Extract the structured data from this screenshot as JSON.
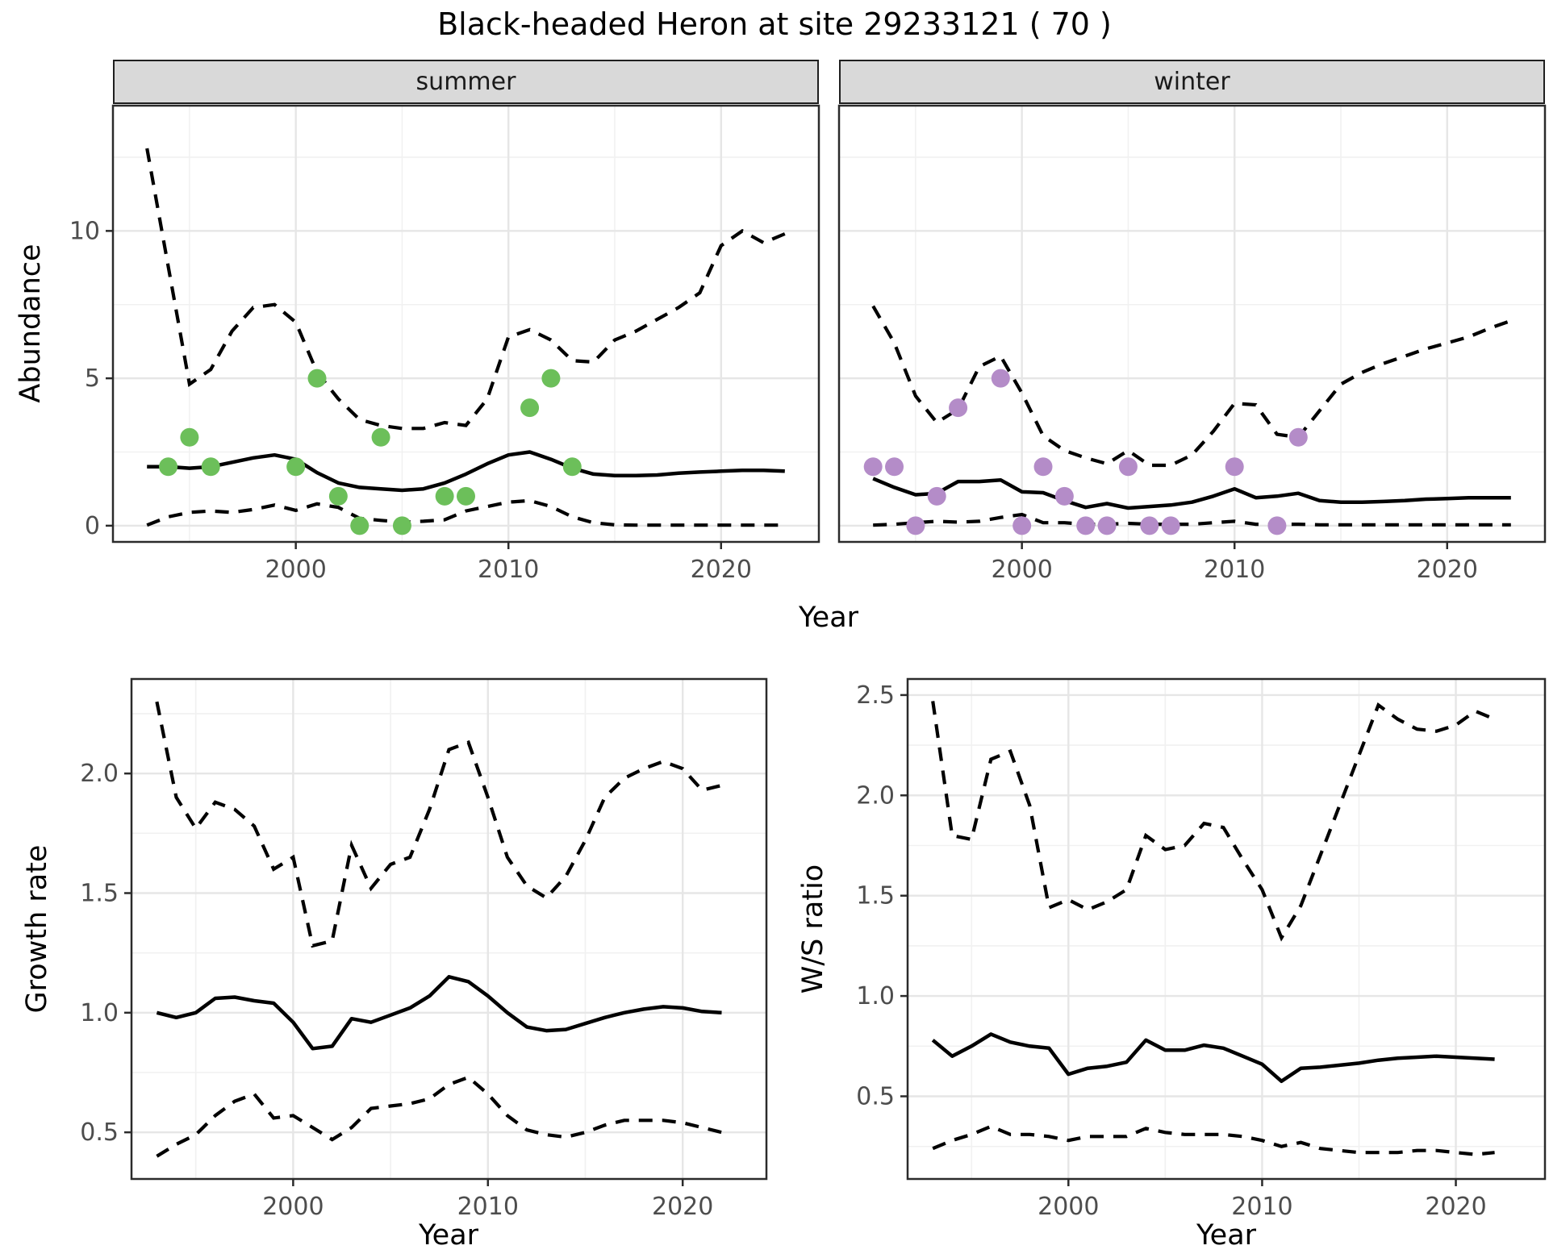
{
  "title": "Black-headed Heron at site 29233121 ( 70 )",
  "colors": {
    "summer_point": "#6cbf5a",
    "winter_point": "#b48cc8",
    "line": "#000000",
    "strip_bg": "#d9d9d9",
    "grid_major": "#e6e6e6",
    "grid_minor": "#f1f1f1",
    "tick_label": "#4d4d4d",
    "panel_border": "#2b2b2b"
  },
  "chart_data": [
    {
      "id": "abundance_summer",
      "type": "line",
      "facet": "summer",
      "xlabel": "Year",
      "ylabel": "Abundance",
      "grid": true,
      "legend": "none",
      "xlim": [
        1991.4,
        2024.6
      ],
      "ylim": [
        -0.55,
        14.25
      ],
      "xticks": [
        2000,
        2010,
        2020
      ],
      "xtick_labels": [
        "2000",
        "2010",
        "2020"
      ],
      "xminor": [
        1995,
        2005,
        2015
      ],
      "yticks": [
        0,
        5,
        10
      ],
      "ytick_labels": [
        "0",
        "5",
        "10"
      ],
      "yminor": [
        2.5,
        7.5,
        12.5
      ],
      "years": [
        1993,
        1994,
        1995,
        1996,
        1997,
        1998,
        1999,
        2000,
        2001,
        2002,
        2003,
        2004,
        2005,
        2006,
        2007,
        2008,
        2009,
        2010,
        2011,
        2012,
        2013,
        2014,
        2015,
        2016,
        2017,
        2018,
        2019,
        2020,
        2021,
        2022,
        2023
      ],
      "fit": [
        2.0,
        2.0,
        1.95,
        2.0,
        2.15,
        2.3,
        2.4,
        2.25,
        1.8,
        1.45,
        1.3,
        1.25,
        1.2,
        1.25,
        1.45,
        1.75,
        2.1,
        2.4,
        2.5,
        2.25,
        1.95,
        1.75,
        1.7,
        1.7,
        1.72,
        1.78,
        1.82,
        1.85,
        1.88,
        1.88,
        1.85
      ],
      "upper_ci": [
        12.8,
        8.8,
        4.8,
        5.3,
        6.6,
        7.4,
        7.5,
        6.9,
        5.2,
        4.3,
        3.6,
        3.4,
        3.3,
        3.3,
        3.5,
        3.4,
        4.3,
        6.4,
        6.65,
        6.3,
        5.6,
        5.55,
        6.3,
        6.6,
        7.0,
        7.4,
        7.9,
        9.5,
        10.0,
        9.6,
        9.9
      ],
      "lower_ci": [
        0.02,
        0.3,
        0.45,
        0.5,
        0.45,
        0.55,
        0.7,
        0.52,
        0.74,
        0.62,
        0.25,
        0.18,
        0.12,
        0.15,
        0.2,
        0.5,
        0.65,
        0.8,
        0.85,
        0.65,
        0.3,
        0.1,
        0.03,
        0.02,
        0.02,
        0.02,
        0.02,
        0.02,
        0.02,
        0.02,
        0.02
      ],
      "points": [
        [
          1994,
          2
        ],
        [
          1995,
          3
        ],
        [
          1996,
          2
        ],
        [
          2000,
          2
        ],
        [
          2001,
          5
        ],
        [
          2002,
          1
        ],
        [
          2003,
          0
        ],
        [
          2004,
          3
        ],
        [
          2005,
          0
        ],
        [
          2007,
          1
        ],
        [
          2008,
          1
        ],
        [
          2011,
          4
        ],
        [
          2012,
          5
        ],
        [
          2013,
          2
        ]
      ]
    },
    {
      "id": "abundance_winter",
      "type": "line",
      "facet": "winter",
      "xlabel": "Year",
      "ylabel": "Abundance",
      "grid": true,
      "legend": "none",
      "xlim": [
        1991.4,
        2024.6
      ],
      "ylim": [
        -0.55,
        14.25
      ],
      "xticks": [
        2000,
        2010,
        2020
      ],
      "xtick_labels": [
        "2000",
        "2010",
        "2020"
      ],
      "xminor": [
        1995,
        2005,
        2015
      ],
      "yticks": [
        0,
        5,
        10
      ],
      "ytick_labels": [
        "0",
        "5",
        "10"
      ],
      "yminor": [
        2.5,
        7.5,
        12.5
      ],
      "years": [
        1993,
        1994,
        1995,
        1996,
        1997,
        1998,
        1999,
        2000,
        2001,
        2002,
        2003,
        2004,
        2005,
        2006,
        2007,
        2008,
        2009,
        2010,
        2011,
        2012,
        2013,
        2014,
        2015,
        2016,
        2017,
        2018,
        2019,
        2020,
        2021,
        2022,
        2023
      ],
      "fit": [
        1.6,
        1.3,
        1.05,
        1.1,
        1.5,
        1.5,
        1.55,
        1.15,
        1.12,
        0.85,
        0.62,
        0.75,
        0.6,
        0.65,
        0.7,
        0.8,
        1.0,
        1.25,
        0.95,
        1.0,
        1.1,
        0.85,
        0.8,
        0.8,
        0.82,
        0.85,
        0.9,
        0.92,
        0.95,
        0.95,
        0.95
      ],
      "upper_ci": [
        7.45,
        6.2,
        4.4,
        3.5,
        3.95,
        5.4,
        5.75,
        4.5,
        3.05,
        2.55,
        2.3,
        2.1,
        2.55,
        2.05,
        2.05,
        2.4,
        3.2,
        4.15,
        4.1,
        3.1,
        3.0,
        3.9,
        4.8,
        5.2,
        5.5,
        5.75,
        6.0,
        6.2,
        6.4,
        6.7,
        6.95
      ],
      "lower_ci": [
        0.02,
        0.05,
        0.1,
        0.15,
        0.12,
        0.15,
        0.28,
        0.38,
        0.1,
        0.1,
        0.05,
        0.05,
        0.08,
        0.05,
        0.05,
        0.05,
        0.1,
        0.15,
        0.05,
        0.05,
        0.05,
        0.03,
        0.03,
        0.03,
        0.03,
        0.03,
        0.03,
        0.03,
        0.03,
        0.03,
        0.03
      ],
      "points": [
        [
          1993,
          2
        ],
        [
          1994,
          2
        ],
        [
          1995,
          0
        ],
        [
          1996,
          1
        ],
        [
          1997,
          4
        ],
        [
          1999,
          5
        ],
        [
          2000,
          0
        ],
        [
          2001,
          2
        ],
        [
          2002,
          1
        ],
        [
          2003,
          0
        ],
        [
          2004,
          0
        ],
        [
          2005,
          2
        ],
        [
          2006,
          0
        ],
        [
          2007,
          0
        ],
        [
          2010,
          2
        ],
        [
          2012,
          0
        ],
        [
          2013,
          3
        ]
      ]
    },
    {
      "id": "growth_rate",
      "type": "line",
      "facet": "",
      "xlabel": "Year",
      "ylabel": "Growth rate",
      "grid": true,
      "legend": "none",
      "xlim": [
        1991.7,
        2024.3
      ],
      "ylim": [
        0.305,
        2.395
      ],
      "xticks": [
        2000,
        2010,
        2020
      ],
      "xtick_labels": [
        "2000",
        "2010",
        "2020"
      ],
      "xminor": [
        1995,
        2005,
        2015
      ],
      "yticks": [
        0.5,
        1.0,
        1.5,
        2.0
      ],
      "ytick_labels": [
        "0.5",
        "1.0",
        "1.5",
        "2.0"
      ],
      "yminor": [
        0.75,
        1.25,
        1.75,
        2.25
      ],
      "years": [
        1993,
        1994,
        1995,
        1996,
        1997,
        1998,
        1999,
        2000,
        2001,
        2002,
        2003,
        2004,
        2005,
        2006,
        2007,
        2008,
        2009,
        2010,
        2011,
        2012,
        2013,
        2014,
        2015,
        2016,
        2017,
        2018,
        2019,
        2020,
        2021,
        2022
      ],
      "fit": [
        1.0,
        0.98,
        1.0,
        1.06,
        1.065,
        1.05,
        1.04,
        0.96,
        0.85,
        0.86,
        0.975,
        0.96,
        0.99,
        1.02,
        1.07,
        1.15,
        1.13,
        1.07,
        1.0,
        0.94,
        0.925,
        0.93,
        0.955,
        0.98,
        1.0,
        1.015,
        1.025,
        1.02,
        1.005,
        1.0
      ],
      "upper_ci": [
        2.3,
        1.9,
        1.77,
        1.88,
        1.85,
        1.78,
        1.6,
        1.65,
        1.28,
        1.3,
        1.7,
        1.52,
        1.62,
        1.65,
        1.85,
        2.1,
        2.13,
        1.9,
        1.65,
        1.53,
        1.48,
        1.57,
        1.72,
        1.9,
        1.98,
        2.02,
        2.05,
        2.02,
        1.93,
        1.95
      ],
      "lower_ci": [
        0.4,
        0.45,
        0.49,
        0.57,
        0.63,
        0.66,
        0.56,
        0.57,
        0.52,
        0.47,
        0.52,
        0.6,
        0.61,
        0.62,
        0.64,
        0.7,
        0.73,
        0.66,
        0.57,
        0.51,
        0.49,
        0.48,
        0.5,
        0.53,
        0.55,
        0.55,
        0.55,
        0.54,
        0.52,
        0.5
      ],
      "points": []
    },
    {
      "id": "ws_ratio",
      "type": "line",
      "facet": "",
      "xlabel": "Year",
      "ylabel": "W/S ratio",
      "grid": true,
      "legend": "none",
      "xlim": [
        1991.7,
        2024.6
      ],
      "ylim": [
        0.088,
        2.58
      ],
      "xticks": [
        2000,
        2010,
        2020
      ],
      "xtick_labels": [
        "2000",
        "2010",
        "2020"
      ],
      "xminor": [
        1995,
        2005,
        2015
      ],
      "yticks": [
        0.5,
        1.0,
        1.5,
        2.0,
        2.5
      ],
      "ytick_labels": [
        "0.5",
        "1.0",
        "1.5",
        "2.0",
        "2.5"
      ],
      "yminor": [
        0.25,
        0.75,
        1.25,
        1.75,
        2.25
      ],
      "years": [
        1993,
        1994,
        1995,
        1996,
        1997,
        1998,
        1999,
        2000,
        2001,
        2002,
        2003,
        2004,
        2005,
        2006,
        2007,
        2008,
        2009,
        2010,
        2011,
        2012,
        2013,
        2014,
        2015,
        2016,
        2017,
        2018,
        2019,
        2020,
        2021,
        2022
      ],
      "fit": [
        0.78,
        0.7,
        0.75,
        0.81,
        0.77,
        0.75,
        0.74,
        0.61,
        0.64,
        0.65,
        0.67,
        0.78,
        0.73,
        0.73,
        0.755,
        0.74,
        0.7,
        0.66,
        0.575,
        0.64,
        0.645,
        0.655,
        0.665,
        0.68,
        0.69,
        0.695,
        0.7,
        0.695,
        0.69,
        0.685
      ],
      "upper_ci": [
        2.47,
        1.8,
        1.78,
        2.18,
        2.22,
        1.95,
        1.44,
        1.48,
        1.43,
        1.47,
        1.53,
        1.8,
        1.73,
        1.75,
        1.86,
        1.84,
        1.68,
        1.53,
        1.29,
        1.45,
        1.7,
        1.95,
        2.2,
        2.45,
        2.38,
        2.33,
        2.32,
        2.35,
        2.42,
        2.38
      ],
      "lower_ci": [
        0.24,
        0.28,
        0.31,
        0.35,
        0.31,
        0.31,
        0.3,
        0.28,
        0.3,
        0.3,
        0.3,
        0.34,
        0.32,
        0.31,
        0.31,
        0.31,
        0.3,
        0.28,
        0.25,
        0.27,
        0.24,
        0.23,
        0.22,
        0.22,
        0.22,
        0.23,
        0.23,
        0.22,
        0.21,
        0.22
      ],
      "points": []
    }
  ]
}
